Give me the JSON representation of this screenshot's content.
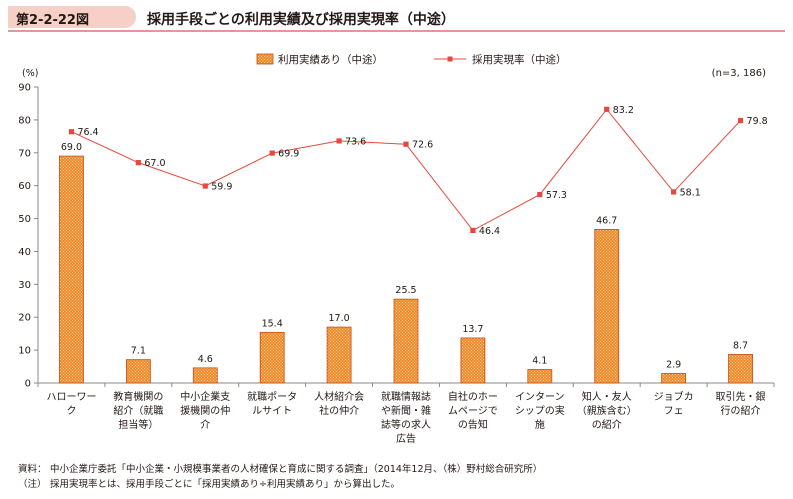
{
  "header": {
    "figure_number": "第2-2-22図",
    "title": "採用手段ごとの利用実績及び採用実現率（中途）"
  },
  "chart_data": {
    "type": "bar",
    "y_unit": "(%)",
    "sample_size": "(n=3, 186)",
    "ylim": [
      0,
      90
    ],
    "yticks": [
      "0",
      "10",
      "20",
      "30",
      "40",
      "50",
      "60",
      "70",
      "80",
      "90"
    ],
    "grid": false,
    "legend_position": "top",
    "categories": [
      [
        "ハローワー",
        "ク"
      ],
      [
        "教育機関の",
        "紹介（就職",
        "担当等）"
      ],
      [
        "中小企業支",
        "援機関の仲",
        "介"
      ],
      [
        "就職ポータ",
        "ルサイト"
      ],
      [
        "人材紹介会",
        "社の仲介"
      ],
      [
        "就職情報誌",
        "や新聞・雑",
        "誌等の求人",
        "広告"
      ],
      [
        "自社のホー",
        "ムページで",
        "の告知"
      ],
      [
        "インターン",
        "シップの実",
        "施"
      ],
      [
        "知人・友人",
        "（親族含む）",
        "の紹介"
      ],
      [
        "ジョブカ",
        "フェ"
      ],
      [
        "取引先・銀",
        "行の紹介"
      ]
    ],
    "series": [
      {
        "name": "利用実績あり（中途）",
        "kind": "bar",
        "color": "#f08a28",
        "values": [
          69.0,
          7.1,
          4.6,
          15.4,
          17.0,
          25.5,
          13.7,
          4.1,
          46.7,
          2.9,
          8.7
        ],
        "labels": [
          "69.0",
          "7.1",
          "4.6",
          "15.4",
          "17.0",
          "25.5",
          "13.7",
          "4.1",
          "46.7",
          "2.9",
          "8.7"
        ]
      },
      {
        "name": "採用実現率（中途）",
        "kind": "line",
        "color": "#e8473c",
        "values": [
          76.4,
          67.0,
          59.9,
          69.9,
          73.6,
          72.6,
          46.4,
          57.3,
          83.2,
          58.1,
          79.8
        ],
        "labels": [
          "76.4",
          "67.0",
          "59.9",
          "69.9",
          "73.6",
          "72.6",
          "46.4",
          "57.3",
          "83.2",
          "58.1",
          "79.8"
        ]
      }
    ]
  },
  "notes": [
    {
      "key": "資料：",
      "text": "中小企業庁委託「中小企業・小規模事業者の人材確保と育成に関する調査」（2014年12月、（株）野村総合研究所）"
    },
    {
      "key": "（注）",
      "text": "採用実現率とは、採用手段ごとに「採用実績あり÷利用実績あり」から算出した。"
    }
  ]
}
